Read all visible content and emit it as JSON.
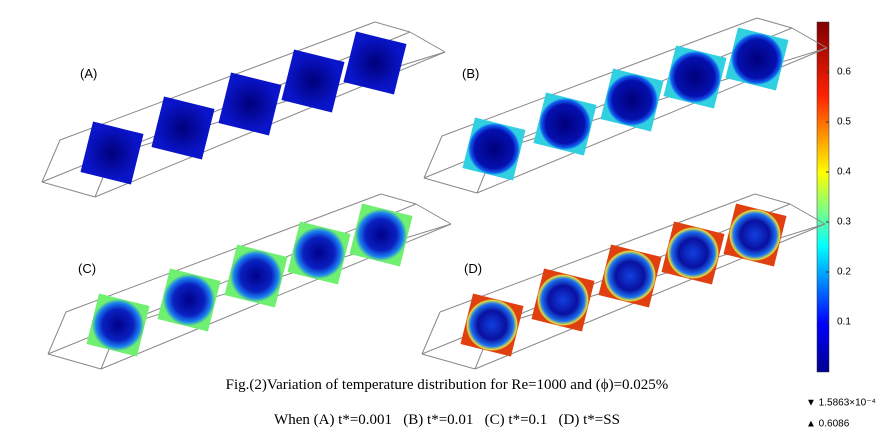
{
  "panels": [
    {
      "label": "(A)"
    },
    {
      "label": "(B)"
    },
    {
      "label": "(C)"
    },
    {
      "label": "(D)"
    }
  ],
  "colorbar": {
    "ticks": [
      0.1,
      0.2,
      0.3,
      0.4,
      0.5,
      0.6
    ],
    "min_label": "▼ 1.5863×10⁻⁴",
    "max_label": "▲ 0.6086"
  },
  "caption": {
    "line1": "Fig.(2)Variation of temperature distribution for Re=1000 and (ϕ)=0.025%",
    "line2": "When (A) t*=0.001   (B) t*=0.01   (C) t*=0.1   (D) t*=SS"
  }
}
